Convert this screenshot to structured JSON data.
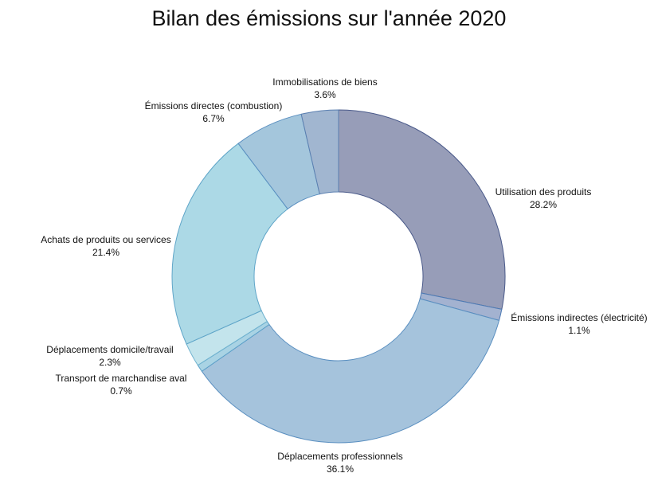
{
  "chart_data": {
    "type": "pie",
    "title": "Bilan des émissions sur l'année 2020",
    "donut": true,
    "start_angle_deg": 0,
    "direction": "clockwise",
    "slices": [
      {
        "name": "Utilisation des produits",
        "value": 28.2,
        "label": "28.2%",
        "color": "#979db8",
        "stroke": "#4a5a8a"
      },
      {
        "name": "Émissions indirectes (électricité)",
        "value": 1.1,
        "label": "1.1%",
        "color": "#a3b2d0",
        "stroke": "#4e7bb5"
      },
      {
        "name": "Déplacements professionnels",
        "value": 36.1,
        "label": "36.1%",
        "color": "#a5c3dc",
        "stroke": "#5a8fc0"
      },
      {
        "name": "Transport de marchandise aval",
        "value": 0.7,
        "label": "0.7%",
        "color": "#a9d3e4",
        "stroke": "#5a9fc8"
      },
      {
        "name": "Déplacements domicile/travail",
        "value": 2.3,
        "label": "2.3%",
        "color": "#c3e4ec",
        "stroke": "#6fb2cf"
      },
      {
        "name": "Achats de produits ou services",
        "value": 21.4,
        "label": "21.4%",
        "color": "#acd9e6",
        "stroke": "#5fa5c8"
      },
      {
        "name": "Émissions directes (combustion)",
        "value": 6.7,
        "label": "6.7%",
        "color": "#a4c6dc",
        "stroke": "#5a8fc0"
      },
      {
        "name": "Immobilisations de biens",
        "value": 3.6,
        "label": "3.6%",
        "color": "#a1b6d0",
        "stroke": "#5a7fb0"
      }
    ]
  }
}
